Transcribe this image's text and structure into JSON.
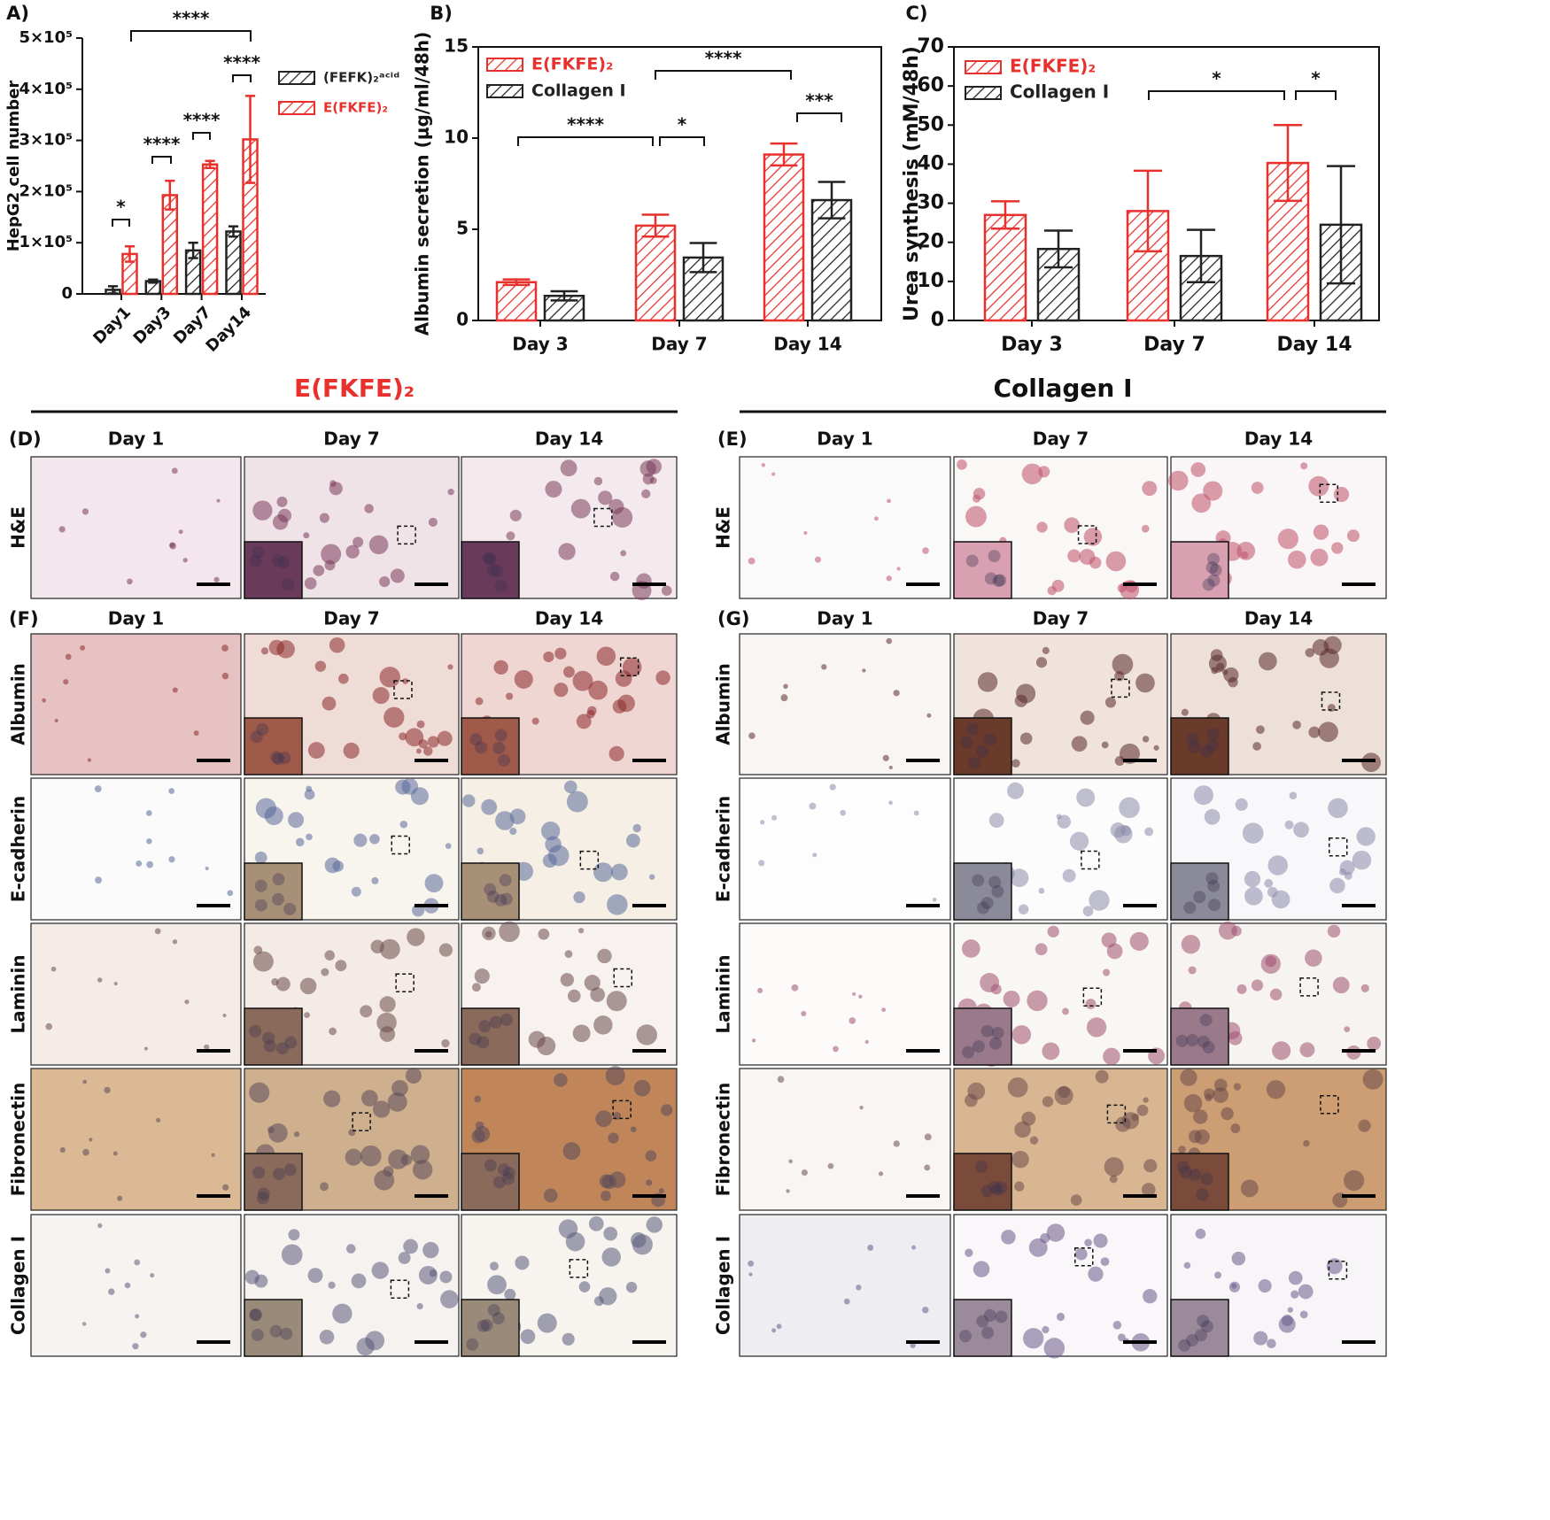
{
  "chart_data": [
    {
      "type": "bar",
      "label": "A)",
      "ylabel": "HepG2 cell number",
      "categories": [
        "Day1",
        "Day3",
        "Day7",
        "Day14"
      ],
      "ylim": [
        0,
        500000
      ],
      "yticks": [
        0,
        {
          "value": 100000,
          "label": "1×10⁵"
        },
        {
          "value": 200000,
          "label": "2×10⁵"
        },
        {
          "value": 300000,
          "label": "3×10⁵"
        },
        {
          "value": 400000,
          "label": "4×10⁵"
        },
        {
          "value": 500000,
          "label": "5×10⁵"
        }
      ],
      "series": [
        {
          "name": "(FEFK)₂ᵃᶜⁱᵈ",
          "color": "#222222",
          "values": [
            8000,
            25000,
            85000,
            122000
          ],
          "errors": [
            7000,
            3000,
            15000,
            10000
          ]
        },
        {
          "name": "E(FKFE)₂",
          "color": "#e8302c",
          "values": [
            78000,
            193000,
            253000,
            302000
          ],
          "errors": [
            15000,
            28000,
            7000,
            85000
          ]
        }
      ],
      "annotations": [
        "*",
        "****",
        "****",
        "****",
        "****"
      ],
      "legend": "right"
    },
    {
      "type": "bar",
      "label": "B)",
      "ylabel": "Albumin secretion (μg/ml/48h)",
      "categories": [
        "Day 3",
        "Day 7",
        "Day 14"
      ],
      "ylim": [
        0,
        15
      ],
      "yticks": [
        0,
        5,
        10,
        15
      ],
      "series": [
        {
          "name": "E(FKFE)₂",
          "color": "#e8302c",
          "values": [
            2.1,
            5.2,
            9.1
          ],
          "errors": [
            0.15,
            0.6,
            0.6
          ]
        },
        {
          "name": "Collagen I",
          "color": "#222222",
          "values": [
            1.35,
            3.45,
            6.6
          ],
          "errors": [
            0.25,
            0.8,
            1.0
          ]
        }
      ],
      "annotations": [
        "****",
        "*",
        "****",
        "***"
      ],
      "legend": "upper left"
    },
    {
      "type": "bar",
      "label": "C)",
      "ylabel": "Urea synthesis (mM/48h)",
      "categories": [
        "Day 3",
        "Day 7",
        "Day 14"
      ],
      "ylim": [
        0,
        70
      ],
      "yticks": [
        0,
        10,
        20,
        30,
        40,
        50,
        60,
        70
      ],
      "series": [
        {
          "name": "E(FKFE)₂",
          "color": "#e8302c",
          "values": [
            27,
            28,
            40.3
          ],
          "errors": [
            3.5,
            10.3,
            9.7
          ]
        },
        {
          "name": "Collagen I",
          "color": "#222222",
          "values": [
            18.3,
            16.5,
            24.5
          ],
          "errors": [
            4.7,
            6.7,
            15
          ]
        }
      ],
      "annotations": [
        "*",
        "*"
      ],
      "legend": "upper left"
    }
  ],
  "headers": [
    "E(FKFE)₂",
    "Collagen I"
  ],
  "panels": [
    {
      "label": "(D)",
      "days": [
        "Day 1",
        "Day 7",
        "Day 14"
      ],
      "rows": [
        "H&E"
      ]
    },
    {
      "label": "(E)",
      "days": [
        "Day 1",
        "Day 7",
        "Day 14"
      ],
      "rows": [
        "H&E"
      ]
    },
    {
      "label": "(F)",
      "days": [
        "Day 1",
        "Day 7",
        "Day 14"
      ],
      "rows": [
        "Albumin",
        "E-cadherin",
        "Laminin",
        "Fibronectin",
        "Collagen I"
      ]
    },
    {
      "label": "(G)",
      "days": [
        "Day 1",
        "Day 7",
        "Day 14"
      ],
      "rows": [
        "Albumin",
        "E-cadherin",
        "Laminin",
        "Fibronectin",
        "Collagen I"
      ]
    }
  ]
}
